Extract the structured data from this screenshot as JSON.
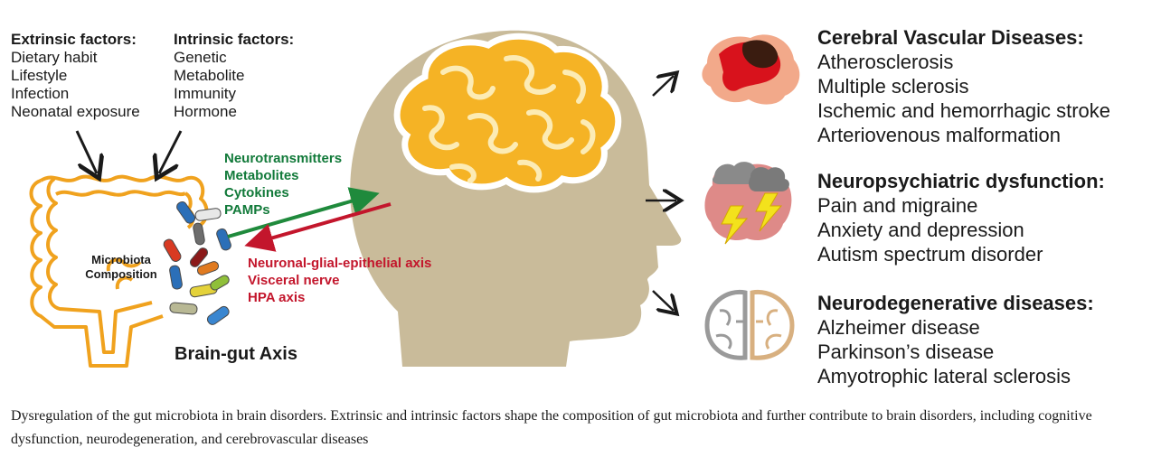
{
  "extrinsic": {
    "title": "Extrinsic factors:",
    "items": [
      "Dietary habit",
      "Lifestyle",
      "Infection",
      "Neonatal exposure"
    ]
  },
  "intrinsic": {
    "title": "Intrinsic factors:",
    "items": [
      "Genetic",
      "Metabolite",
      "Immunity",
      "Hormone"
    ]
  },
  "gut_to_brain": [
    "Neurotransmitters",
    "Metabolites",
    "Cytokines",
    "PAMPs"
  ],
  "brain_to_gut": [
    "Neuronal-glial-epithelial axis",
    "Visceral nerve",
    "HPA axis"
  ],
  "microbiota_label": [
    "Microbiota",
    "Composition"
  ],
  "axis_title": "Brain-gut Axis",
  "diseases": [
    {
      "title": "Cerebral Vascular Diseases:",
      "items": [
        "Atherosclerosis",
        "Multiple sclerosis",
        "Ischemic and hemorrhagic stroke",
        "Arteriovenous malformation"
      ]
    },
    {
      "title": "Neuropsychiatric dysfunction:",
      "items": [
        "Pain and migraine",
        "Anxiety and depression",
        "Autism spectrum disorder"
      ]
    },
    {
      "title": "Neurodegenerative diseases:",
      "items": [
        "Alzheimer disease",
        "Parkinson’s disease",
        "Amyotrophic lateral sclerosis"
      ]
    }
  ],
  "caption": "Dysregulation of the gut microbiota in brain disorders. Extrinsic and intrinsic factors shape the composition of gut microbiota and further contribute to brain disorders, including cognitive dysfunction, neurodegeneration, and cerebrovascular diseases",
  "colors": {
    "intestine": "#f0a21e",
    "head": "#c9bb9a",
    "brain": "#f5b325",
    "green_arrow": "#1f8a3c",
    "red_arrow": "#c3162c"
  }
}
